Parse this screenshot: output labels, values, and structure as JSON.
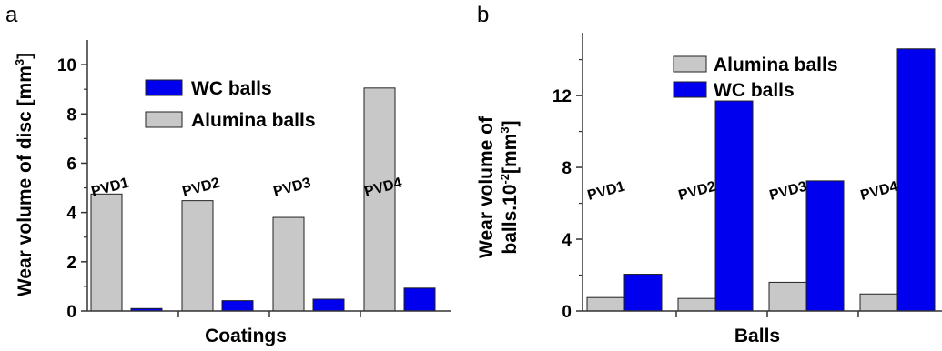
{
  "chart_data": [
    {
      "type": "bar",
      "panel": "a",
      "categories": [
        "PVD1",
        "PVD2",
        "PVD3",
        "PVD4"
      ],
      "series": [
        {
          "name": "Alumina balls",
          "values": [
            4.75,
            4.48,
            3.8,
            9.05
          ],
          "color": "#c8c8c8"
        },
        {
          "name": "WC balls",
          "values": [
            0.1,
            0.42,
            0.48,
            0.93
          ],
          "color": "#0000ee"
        }
      ],
      "legend_order": [
        "WC balls",
        "Alumina balls"
      ],
      "xlabel": "Coatings",
      "ylabel": "Wear volume of disc [mm",
      "ylabel_sup": "3",
      "ylabel_end": "]",
      "ylim": [
        0,
        11
      ],
      "yticks": [
        "0",
        "2",
        "4",
        "6",
        "8",
        "10"
      ]
    },
    {
      "type": "bar",
      "panel": "b",
      "categories": [
        "PVD1",
        "PVD2",
        "PVD3",
        "PVD4"
      ],
      "series": [
        {
          "name": "Alumina balls",
          "values": [
            0.75,
            0.7,
            1.6,
            0.95
          ],
          "color": "#c8c8c8"
        },
        {
          "name": "WC balls",
          "values": [
            2.05,
            11.7,
            7.25,
            14.6
          ],
          "color": "#0000ee"
        }
      ],
      "legend_order": [
        "Alumina balls",
        "WC balls"
      ],
      "xlabel": "Balls",
      "ylabel_line1": "Wear volume of",
      "ylabel_line2": "balls.10",
      "ylabel_sup": "-2",
      "ylabel_line2_end": "[mm",
      "ylabel_sup2": "3",
      "ylabel_end": "]",
      "ylim": [
        0,
        15.5
      ],
      "yticks": [
        "0",
        "4",
        "8",
        "12"
      ]
    }
  ]
}
